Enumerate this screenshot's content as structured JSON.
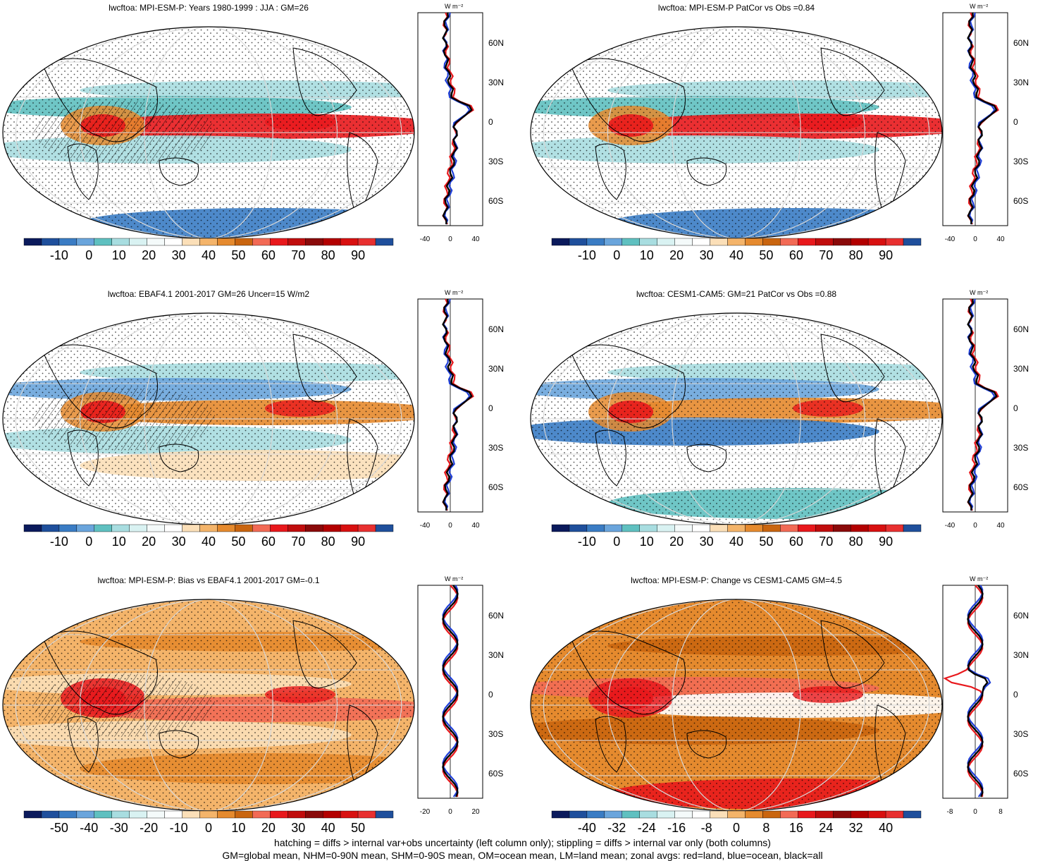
{
  "panels": [
    {
      "title": "lwcftoa: MPI-ESM-P: Years 1980-1999 : JJA : GM=26",
      "colorbar_labels": [
        "-10",
        "0",
        "10",
        "20",
        "30",
        "40",
        "50",
        "60",
        "70",
        "80",
        "90"
      ],
      "zonal_xticks": [
        "-40",
        "0",
        "40"
      ],
      "zonal_lat_ticks": [
        "60N",
        "30N",
        "0",
        "30S",
        "60S"
      ],
      "zonal_unit": "W m⁻²",
      "hatching": true
    },
    {
      "title": "lwcftoa: MPI-ESM-P PatCor vs Obs =0.84",
      "colorbar_labels": [
        "-10",
        "0",
        "10",
        "20",
        "30",
        "40",
        "50",
        "60",
        "70",
        "80",
        "90"
      ],
      "zonal_xticks": [
        "-40",
        "0",
        "40"
      ],
      "zonal_lat_ticks": [
        "60N",
        "30N",
        "0",
        "30S",
        "60S"
      ],
      "zonal_unit": "W m⁻²",
      "hatching": false
    },
    {
      "title": "lwcftoa: EBAF4.1 2001-2017 GM=26 Uncer=15 W/m2",
      "colorbar_labels": [
        "-10",
        "0",
        "10",
        "20",
        "30",
        "40",
        "50",
        "60",
        "70",
        "80",
        "90"
      ],
      "zonal_xticks": [
        "-40",
        "0",
        "40"
      ],
      "zonal_lat_ticks": [
        "60N",
        "30N",
        "0",
        "30S",
        "60S"
      ],
      "zonal_unit": "W m⁻²",
      "hatching": true
    },
    {
      "title": "lwcftoa: CESM1-CAM5: GM=21 PatCor vs Obs =0.88",
      "colorbar_labels": [
        "-10",
        "0",
        "10",
        "20",
        "30",
        "40",
        "50",
        "60",
        "70",
        "80",
        "90"
      ],
      "zonal_xticks": [
        "-40",
        "0",
        "40"
      ],
      "zonal_lat_ticks": [
        "60N",
        "30N",
        "0",
        "30S",
        "60S"
      ],
      "zonal_unit": "W m⁻²",
      "hatching": false
    },
    {
      "title": "lwcftoa: MPI-ESM-P: Bias vs EBAF4.1 2001-2017 GM=-0.1",
      "colorbar_labels": [
        "-50",
        "-40",
        "-30",
        "-20",
        "-10",
        "0",
        "10",
        "20",
        "30",
        "40",
        "50"
      ],
      "zonal_xticks": [
        "-20",
        "0",
        "20"
      ],
      "zonal_lat_ticks": [
        "60N",
        "30N",
        "0",
        "30S",
        "60S"
      ],
      "zonal_unit": "W m⁻²",
      "hatching": true
    },
    {
      "title": "lwcftoa: MPI-ESM-P: Change vs CESM1-CAM5 GM=4.5",
      "colorbar_labels": [
        "-40",
        "-32",
        "-24",
        "-16",
        "-8",
        "0",
        "8",
        "16",
        "24",
        "32",
        "40"
      ],
      "zonal_xticks": [
        "-8",
        "0",
        "8"
      ],
      "zonal_lat_ticks": [
        "60N",
        "30N",
        "0",
        "30S",
        "60S"
      ],
      "zonal_unit": "W m⁻²",
      "hatching": false
    }
  ],
  "palette": [
    "#0b1a5c",
    "#1f4f9c",
    "#3a7cc4",
    "#6aa5dc",
    "#5fc0c0",
    "#a8dde0",
    "#d9f2f2",
    "#f4fafa",
    "#ffffff",
    "#fbdfb8",
    "#f4b46a",
    "#e58a2e",
    "#c9650f",
    "#f26a55",
    "#e8181c",
    "#c00d0d",
    "#8a0a0a",
    "#b30000",
    "#d81010",
    "#e83030",
    "#1f4f9c"
  ],
  "footer": {
    "line1": "hatching = diffs > internal var+obs uncertainty (left column only); stippling = diffs > internal var only (both columns)",
    "line2": "GM=global mean, NHM=0-90N mean, SHM=0-90S mean, OM=ocean mean, LM=land mean; zonal avgs: red=land, blue=ocean, black=all"
  }
}
